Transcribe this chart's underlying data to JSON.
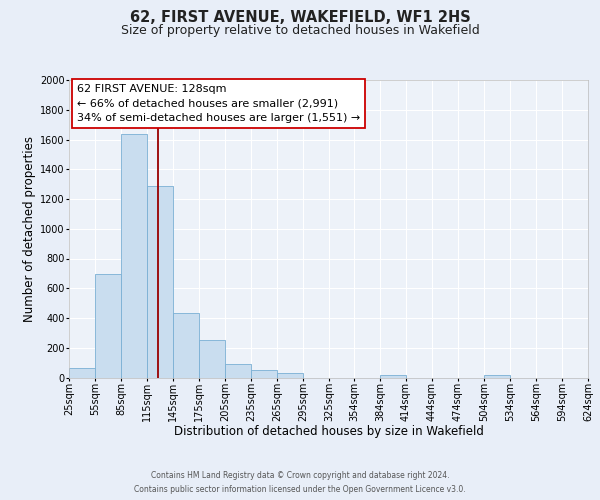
{
  "title": "62, FIRST AVENUE, WAKEFIELD, WF1 2HS",
  "subtitle": "Size of property relative to detached houses in Wakefield",
  "xlabel": "Distribution of detached houses by size in Wakefield",
  "ylabel": "Number of detached properties",
  "bar_color": "#c9ddef",
  "bar_edge_color": "#7aafd4",
  "bin_labels": [
    "25sqm",
    "55sqm",
    "85sqm",
    "115sqm",
    "145sqm",
    "175sqm",
    "205sqm",
    "235sqm",
    "265sqm",
    "295sqm",
    "325sqm",
    "354sqm",
    "384sqm",
    "414sqm",
    "444sqm",
    "474sqm",
    "504sqm",
    "534sqm",
    "564sqm",
    "594sqm",
    "624sqm"
  ],
  "bar_heights": [
    65,
    695,
    1635,
    1285,
    435,
    250,
    90,
    50,
    30,
    0,
    0,
    0,
    15,
    0,
    0,
    0,
    15,
    0,
    0,
    0
  ],
  "red_line_x": 128,
  "bin_edges": [
    25,
    55,
    85,
    115,
    145,
    175,
    205,
    235,
    265,
    295,
    325,
    354,
    384,
    414,
    444,
    474,
    504,
    534,
    564,
    594,
    624
  ],
  "ylim": [
    0,
    2000
  ],
  "yticks": [
    0,
    200,
    400,
    600,
    800,
    1000,
    1200,
    1400,
    1600,
    1800,
    2000
  ],
  "annotation_title": "62 FIRST AVENUE: 128sqm",
  "annotation_line1": "← 66% of detached houses are smaller (2,991)",
  "annotation_line2": "34% of semi-detached houses are larger (1,551) →",
  "footer_line1": "Contains HM Land Registry data © Crown copyright and database right 2024.",
  "footer_line2": "Contains public sector information licensed under the Open Government Licence v3.0.",
  "bg_color": "#e8eef8",
  "plot_bg_color": "#edf2f9",
  "grid_color": "#ffffff",
  "title_fontsize": 10.5,
  "subtitle_fontsize": 9,
  "axis_label_fontsize": 8.5,
  "tick_fontsize": 7,
  "footer_fontsize": 5.5,
  "annotation_fontsize": 8
}
